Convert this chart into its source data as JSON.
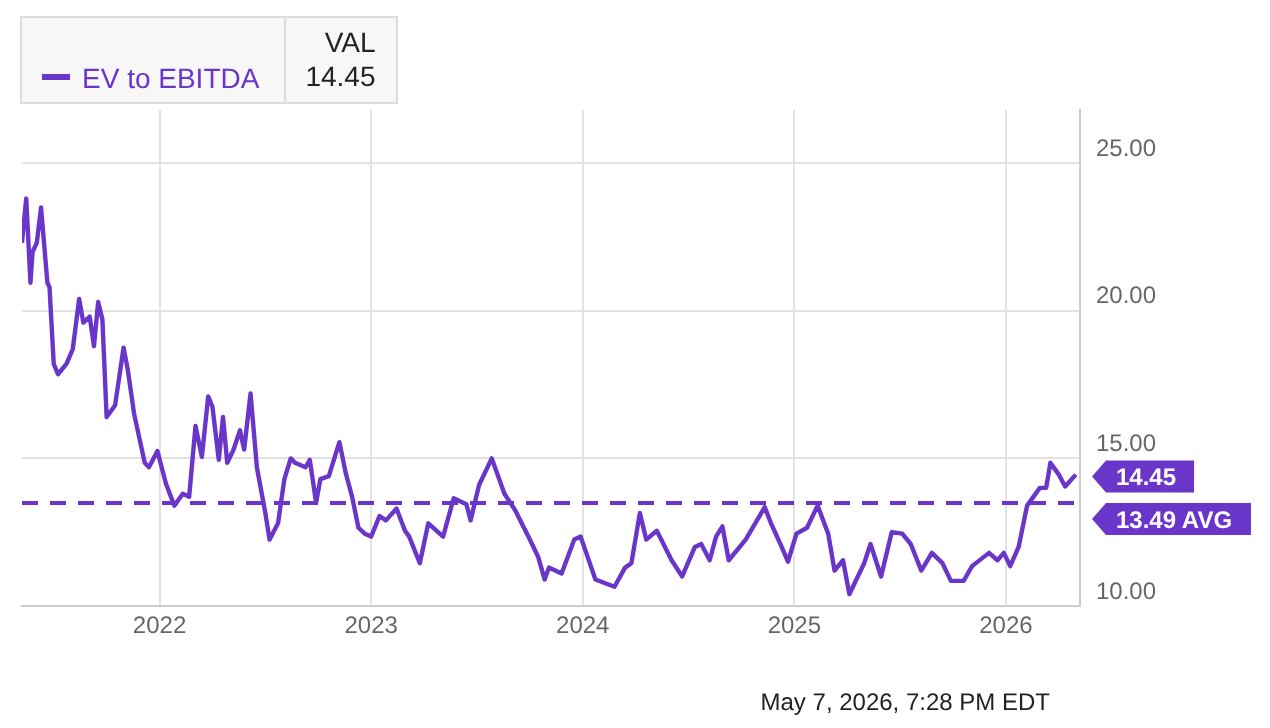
{
  "chart_data": {
    "type": "line",
    "legend": "top left",
    "legend_title": "VAL",
    "grid": true,
    "marker": "none",
    "line_style": "solid",
    "annotations": [
      "May 7, 2026, 7:28 PM EDT"
    ],
    "xlim": [
      2021.35,
      2026.35
    ],
    "xticks": [
      2022,
      2023,
      2024,
      2025,
      2026
    ],
    "ylim": [
      10,
      26.8
    ],
    "yticks": [
      {
        "value": 10,
        "label": "10.00"
      },
      {
        "value": 15,
        "label": "15.00"
      },
      {
        "value": 20,
        "label": "20.00"
      },
      {
        "value": 25,
        "label": "25.00"
      }
    ],
    "ref_lines": [
      {
        "axis": "y",
        "value": 13.49,
        "label": "13.49 AVG",
        "color": "#6a35c9",
        "line_style": "dashed"
      }
    ],
    "series": [
      {
        "name": "EV to EBITDA",
        "color": "#6a35c9",
        "x": [
          2021.35,
          2021.37,
          2021.39,
          2021.4,
          2021.42,
          2021.44,
          2021.47,
          2021.48,
          2021.5,
          2021.52,
          2021.56,
          2021.59,
          2021.62,
          2021.64,
          2021.67,
          2021.69,
          2021.71,
          2021.73,
          2021.75,
          2021.79,
          2021.83,
          2021.85,
          2021.88,
          2021.93,
          2021.95,
          2021.99,
          2022.03,
          2022.07,
          2022.11,
          2022.14,
          2022.17,
          2022.2,
          2022.23,
          2022.25,
          2022.28,
          2022.3,
          2022.32,
          2022.35,
          2022.38,
          2022.4,
          2022.43,
          2022.46,
          2022.5,
          2022.52,
          2022.56,
          2022.59,
          2022.62,
          2022.64,
          2022.69,
          2022.71,
          2022.74,
          2022.76,
          2022.8,
          2022.85,
          2022.88,
          2022.91,
          2022.94,
          2022.97,
          2023.0,
          2023.04,
          2023.07,
          2023.12,
          2023.16,
          2023.18,
          2023.23,
          2023.27,
          2023.34,
          2023.39,
          2023.45,
          2023.47,
          2023.51,
          2023.57,
          2023.63,
          2023.68,
          2023.75,
          2023.79,
          2023.82,
          2023.84,
          2023.9,
          2023.96,
          2023.99,
          2024.06,
          2024.15,
          2024.2,
          2024.23,
          2024.27,
          2024.3,
          2024.35,
          2024.42,
          2024.47,
          2024.53,
          2024.56,
          2024.6,
          2024.63,
          2024.66,
          2024.69,
          2024.77,
          2024.86,
          2024.89,
          2024.94,
          2024.97,
          2025.01,
          2025.06,
          2025.11,
          2025.16,
          2025.19,
          2025.23,
          2025.26,
          2025.33,
          2025.36,
          2025.41,
          2025.46,
          2025.51,
          2025.55,
          2025.6,
          2025.65,
          2025.7,
          2025.74,
          2025.8,
          2025.84,
          2025.92,
          2025.96,
          2025.99,
          2026.02,
          2026.06,
          2026.1,
          2026.16,
          2026.19,
          2026.21,
          2026.25,
          2026.28,
          2026.33
        ],
        "values": [
          22.3,
          23.8,
          20.95,
          22.0,
          22.3,
          23.5,
          20.95,
          20.8,
          18.2,
          17.85,
          18.2,
          18.7,
          20.4,
          19.6,
          19.8,
          18.8,
          20.3,
          19.7,
          16.4,
          16.8,
          18.75,
          18.0,
          16.5,
          14.85,
          14.7,
          15.25,
          14.15,
          13.4,
          13.8,
          13.7,
          16.1,
          15.05,
          17.1,
          16.75,
          14.95,
          16.4,
          14.85,
          15.3,
          15.95,
          15.3,
          17.2,
          14.7,
          13.15,
          12.25,
          12.8,
          14.3,
          15.0,
          14.85,
          14.7,
          14.95,
          13.5,
          14.3,
          14.4,
          15.55,
          14.5,
          13.7,
          12.65,
          12.45,
          12.35,
          13.05,
          12.9,
          13.3,
          12.55,
          12.35,
          11.45,
          12.8,
          12.35,
          13.65,
          13.45,
          12.9,
          14.1,
          15.0,
          13.8,
          13.25,
          12.25,
          11.65,
          10.9,
          11.3,
          11.1,
          12.25,
          12.35,
          10.9,
          10.65,
          11.3,
          11.45,
          13.15,
          12.25,
          12.55,
          11.55,
          11.0,
          12.0,
          12.1,
          11.55,
          12.35,
          12.7,
          11.55,
          12.25,
          13.35,
          12.8,
          12.0,
          11.5,
          12.45,
          12.65,
          13.4,
          12.45,
          11.2,
          11.55,
          10.4,
          11.45,
          12.1,
          11.0,
          12.5,
          12.45,
          12.1,
          11.2,
          11.8,
          11.45,
          10.85,
          10.85,
          11.35,
          11.8,
          11.55,
          11.8,
          11.35,
          12.0,
          13.4,
          14.0,
          14.0,
          14.85,
          14.45,
          14.05,
          14.45
        ],
        "value_labels": [
          null,
          null,
          null,
          null,
          null,
          null,
          null,
          null,
          null,
          null,
          null,
          null,
          null,
          null,
          null,
          null,
          null,
          null,
          null,
          null,
          null,
          null,
          null,
          null,
          null,
          null,
          null,
          null,
          null,
          null,
          null,
          null,
          null,
          null,
          null,
          null,
          null,
          null,
          null,
          null,
          null,
          null,
          null,
          null,
          null,
          null,
          null,
          null,
          null,
          null,
          null,
          null,
          null,
          null,
          null,
          null,
          null,
          null,
          null,
          null,
          null,
          null,
          null,
          null,
          null,
          null,
          null,
          null,
          null,
          null,
          null,
          null,
          null,
          null,
          null,
          null,
          null,
          null,
          null,
          null,
          null,
          null,
          null,
          null,
          null,
          null,
          null,
          null,
          null,
          null,
          null,
          null,
          null,
          null,
          null,
          null,
          null,
          null,
          null,
          null,
          null,
          null,
          null,
          null,
          null,
          null,
          null,
          null,
          null,
          null,
          null,
          null,
          null,
          null,
          null,
          null,
          null,
          null,
          null,
          null,
          null,
          null,
          null,
          null,
          null,
          null,
          null,
          null,
          null,
          null,
          null,
          "14.45"
        ]
      }
    ]
  }
}
